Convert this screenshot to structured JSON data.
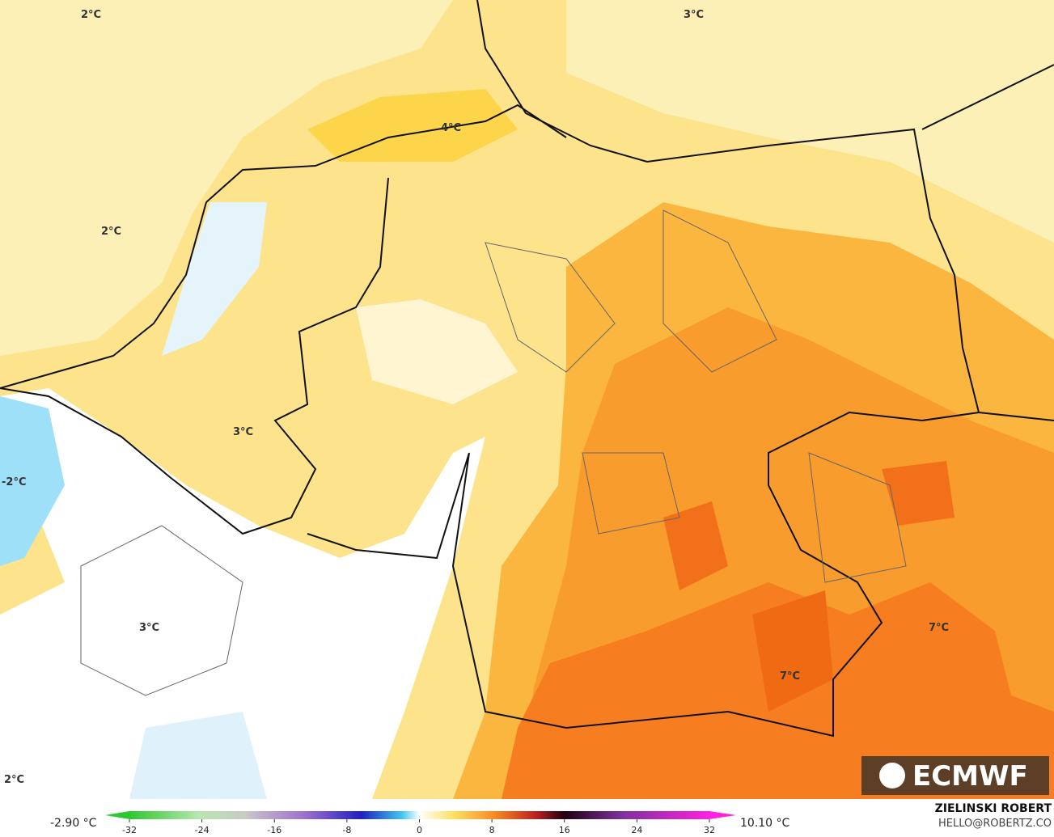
{
  "map_labels": [
    "2°C",
    "2°C",
    "4°C",
    "3°C",
    "3°C",
    "-2°C",
    "3°C",
    "2°C",
    "7°C",
    "7°C"
  ],
  "logo": "ECMWF",
  "author": "ZIELINSKI ROBERT",
  "contact": "HELLO@ROBERTZ.CO",
  "legend": {
    "min_label": "-2.90 °C",
    "max_label": "10.10 °C",
    "ticks": [
      -32,
      -24,
      -16,
      -8,
      0,
      8,
      16,
      24,
      32
    ]
  }
}
